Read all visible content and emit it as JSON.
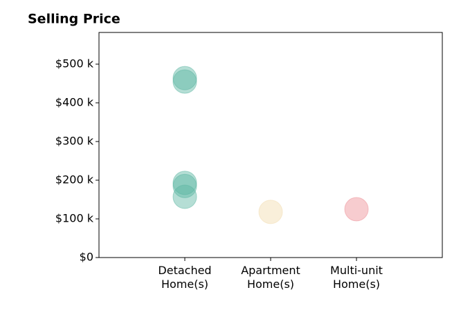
{
  "chart_data": {
    "type": "strip",
    "title": "Selling Price",
    "categories": [
      "Detached\nHome(s)",
      "Apartment\nHome(s)",
      "Multi-unit\nHome(s)"
    ],
    "values": [
      [
        464000,
        455000,
        193000,
        185000,
        157000
      ],
      [
        118000
      ],
      [
        125000
      ]
    ],
    "colors": [
      "#5bb5a2",
      "#f2dcae",
      "#ee8e95"
    ],
    "ylim": [
      0,
      582000
    ],
    "yticks": [
      {
        "value": 0,
        "label": "$0"
      },
      {
        "value": 100000,
        "label": "$100 k"
      },
      {
        "value": 200000,
        "label": "$200 k"
      },
      {
        "value": 300000,
        "label": "$300 k"
      },
      {
        "value": 400000,
        "label": "$400 k"
      },
      {
        "value": 500000,
        "label": "$500 k"
      }
    ],
    "grid": false
  }
}
